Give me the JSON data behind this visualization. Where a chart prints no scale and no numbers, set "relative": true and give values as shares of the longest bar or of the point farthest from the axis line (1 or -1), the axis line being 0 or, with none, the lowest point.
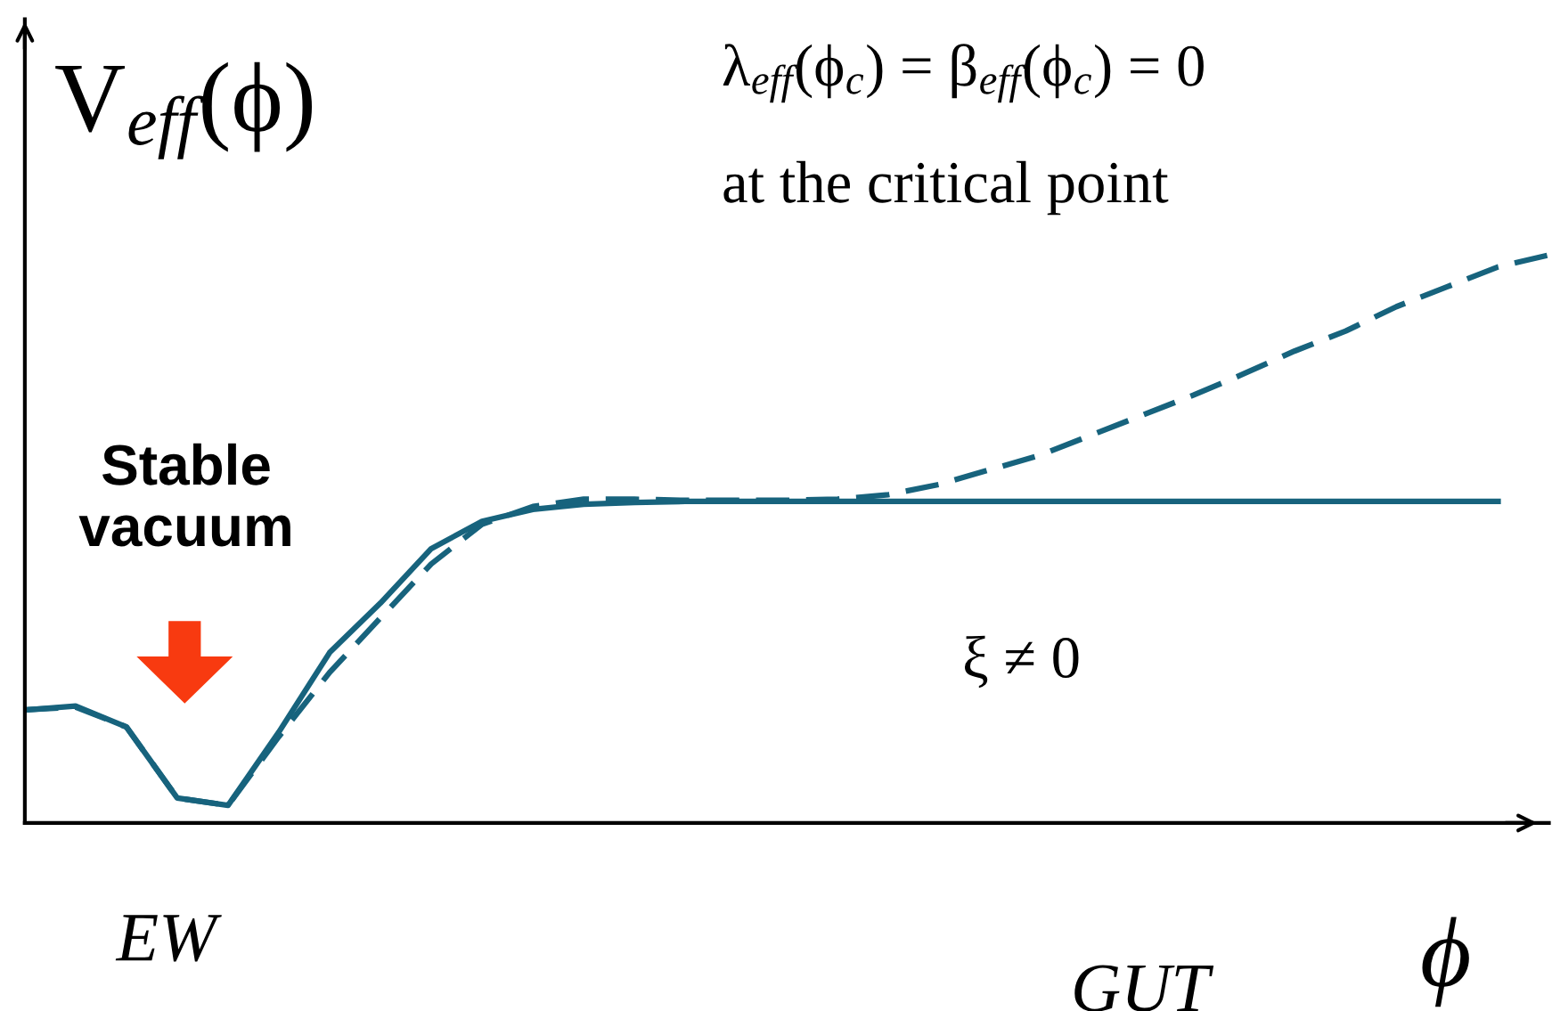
{
  "chart_data": {
    "type": "line",
    "relative": true,
    "ylabel": "V$_{eff}$(ϕ)",
    "xlabel": "ϕ",
    "categories": [
      null,
      null,
      null,
      null,
      null,
      null,
      null,
      null,
      null,
      null,
      null,
      null,
      null,
      null,
      null,
      null,
      null,
      null,
      null,
      null,
      null,
      null,
      null,
      null,
      null,
      null,
      null,
      null,
      null,
      null,
      null
    ],
    "series": [
      {
        "color": "#17637d",
        "line_style": "solid",
        "values": [
          0.199,
          0.206,
          0.169,
          0.044,
          0.031,
          0.16,
          0.3,
          0.387,
          0.483,
          0.531,
          0.552,
          0.561,
          0.564,
          0.566,
          0.566,
          0.566,
          0.566,
          0.566,
          0.566,
          0.566,
          0.566,
          0.566,
          0.566,
          0.566,
          0.566,
          0.566,
          0.566,
          0.566,
          0.566,
          0.566,
          null
        ]
      },
      {
        "color": "#17637d",
        "line_style": "dashed",
        "values": [
          0.199,
          0.204,
          0.169,
          0.044,
          0.031,
          0.152,
          0.265,
          0.361,
          0.456,
          0.526,
          0.557,
          0.57,
          0.57,
          0.568,
          0.568,
          0.568,
          0.57,
          0.578,
          0.596,
          0.622,
          0.648,
          0.683,
          0.718,
          0.753,
          0.791,
          0.831,
          0.866,
          0.909,
          0.944,
          0.979,
          1
        ]
      }
    ],
    "annotations": [
      "λ$_{eff}$(ϕ$_{c}$) = β$_{eff}$(ϕ$_{c}$) = 0",
      "at the critical point",
      "Stable\nvacuum",
      "ξ ≠ 0",
      "EW",
      "GUT"
    ],
    "legend": false,
    "marker": "none"
  }
}
